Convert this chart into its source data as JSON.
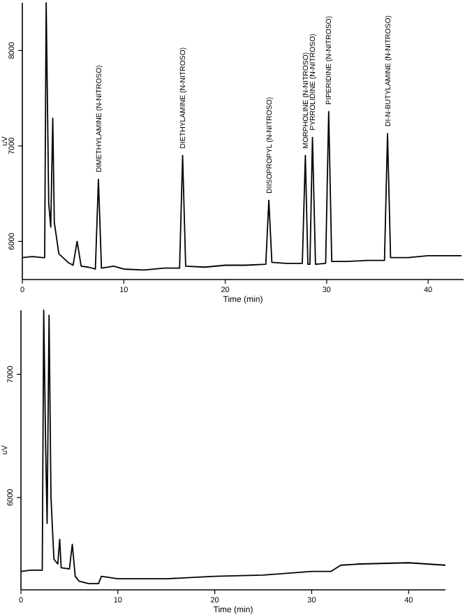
{
  "chart_data": [
    {
      "type": "line",
      "xlabel": "Time (min)",
      "ylabel": "uV",
      "xlim": [
        0,
        43.5
      ],
      "ylim": [
        5600,
        8500
      ],
      "xticks": [
        0,
        10,
        20,
        30,
        40
      ],
      "yticks": [
        6000,
        7000,
        8000
      ],
      "grid": false,
      "line_style": "solid",
      "series": [
        {
          "color": "#000000",
          "x": [
            0,
            1,
            2,
            2.2,
            2.35,
            2.6,
            2.8,
            3.0,
            3.15,
            3.6,
            4.5,
            5.0,
            5.4,
            5.8,
            6.5,
            7.2,
            7.5,
            7.8,
            9,
            10,
            12,
            14,
            15.5,
            15.8,
            16.1,
            18,
            20,
            22,
            24,
            24.3,
            24.6,
            26,
            27.6,
            27.9,
            28.15,
            28.35,
            28.6,
            28.9,
            29.9,
            30.2,
            30.5,
            32,
            34,
            35.7,
            36.0,
            36.3,
            38,
            40,
            43.3
          ],
          "values": [
            5830,
            5840,
            5830,
            5830,
            8500,
            6400,
            6150,
            7290,
            6200,
            5870,
            5780,
            5750,
            6000,
            5740,
            5730,
            5710,
            6650,
            5720,
            5740,
            5710,
            5700,
            5720,
            5720,
            6900,
            5740,
            5730,
            5750,
            5750,
            5760,
            6430,
            5780,
            5770,
            5770,
            6900,
            5760,
            5760,
            7090,
            5760,
            5770,
            7360,
            5790,
            5790,
            5800,
            5800,
            7130,
            5830,
            5830,
            5850,
            5850
          ]
        }
      ],
      "annotations": [
        {
          "text": "DIMETHYLAMINE (N-NITROSO)",
          "x": 7.5,
          "y": 6650
        },
        {
          "text": "DIETHYLAMINE (N-NITROSO)",
          "x": 15.8,
          "y": 6900
        },
        {
          "text": "DIISOPROPYL (N-NITROSO)",
          "x": 24.3,
          "y": 6430
        },
        {
          "text": "MORPHOLINE (N-NITROSO)",
          "x": 27.9,
          "y": 6900
        },
        {
          "text": "PYRROLIDINE (N-NITROSO)",
          "x": 28.6,
          "y": 7090
        },
        {
          "text": "PIPERIDINE (N-NITROSO)",
          "x": 30.2,
          "y": 7360
        },
        {
          "text": "DI-N-BUTYLAMINE (N-NITROSO)",
          "x": 36.0,
          "y": 7130
        }
      ]
    },
    {
      "type": "line",
      "xlabel": "Time (min)",
      "ylabel": "uV",
      "xlim": [
        0,
        43.8
      ],
      "ylim": [
        5250,
        7520
      ],
      "xticks": [
        0,
        10,
        20,
        30,
        40
      ],
      "yticks": [
        6000,
        7000
      ],
      "grid": false,
      "line_style": "solid",
      "series": [
        {
          "color": "#000000",
          "x": [
            0,
            1,
            2.2,
            2.35,
            2.55,
            2.7,
            2.9,
            3.1,
            3.4,
            3.8,
            4.0,
            4.15,
            5.0,
            5.3,
            5.6,
            6,
            7,
            8,
            8.3,
            10,
            15,
            20,
            25,
            30,
            32,
            33,
            35,
            40,
            43.8
          ],
          "values": [
            5400,
            5410,
            5410,
            7520,
            6400,
            5790,
            7480,
            6000,
            5500,
            5460,
            5660,
            5430,
            5420,
            5620,
            5360,
            5320,
            5300,
            5300,
            5360,
            5340,
            5340,
            5360,
            5370,
            5400,
            5400,
            5450,
            5460,
            5470,
            5450
          ]
        }
      ]
    }
  ]
}
